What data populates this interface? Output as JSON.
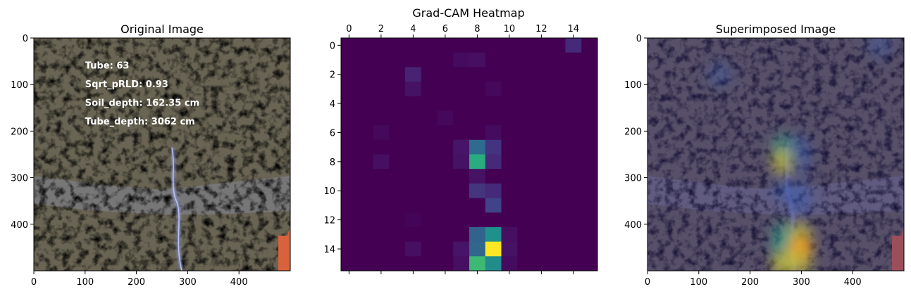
{
  "chart_data": [
    {
      "type": "image",
      "title": "Original Image",
      "xlim": [
        0,
        500
      ],
      "ylim": [
        500,
        0
      ],
      "x_ticks": [
        0,
        100,
        200,
        300,
        400
      ],
      "y_ticks": [
        0,
        100,
        200,
        300,
        400
      ],
      "annotations": [
        "Tube: 63",
        "Sqrt_pRLD: 0.93",
        "Soil_depth: 162.35 cm",
        "Tube_depth: 3062 cm"
      ]
    },
    {
      "type": "heatmap",
      "title": "Grad-CAM Heatmap",
      "x_ticks": [
        0,
        2,
        4,
        6,
        8,
        10,
        12,
        14
      ],
      "y_ticks": [
        0,
        2,
        4,
        6,
        8,
        10,
        12,
        14
      ],
      "colormap": "viridis",
      "rows": 16,
      "cols": 16,
      "hot_cells": [
        {
          "row": 0,
          "col": 14,
          "value": 0.12
        },
        {
          "row": 1,
          "col": 7,
          "value": 0.03
        },
        {
          "row": 1,
          "col": 8,
          "value": 0.04
        },
        {
          "row": 2,
          "col": 4,
          "value": 0.1
        },
        {
          "row": 3,
          "col": 4,
          "value": 0.05
        },
        {
          "row": 3,
          "col": 9,
          "value": 0.02
        },
        {
          "row": 5,
          "col": 6,
          "value": 0.02
        },
        {
          "row": 6,
          "col": 2,
          "value": 0.02
        },
        {
          "row": 6,
          "col": 9,
          "value": 0.03
        },
        {
          "row": 7,
          "col": 7,
          "value": 0.06
        },
        {
          "row": 7,
          "col": 8,
          "value": 0.35
        },
        {
          "row": 7,
          "col": 9,
          "value": 0.15
        },
        {
          "row": 8,
          "col": 2,
          "value": 0.04
        },
        {
          "row": 8,
          "col": 7,
          "value": 0.05
        },
        {
          "row": 8,
          "col": 8,
          "value": 0.62
        },
        {
          "row": 8,
          "col": 9,
          "value": 0.12
        },
        {
          "row": 9,
          "col": 8,
          "value": 0.05
        },
        {
          "row": 10,
          "col": 8,
          "value": 0.16
        },
        {
          "row": 10,
          "col": 9,
          "value": 0.12
        },
        {
          "row": 11,
          "col": 9,
          "value": 0.2
        },
        {
          "row": 12,
          "col": 4,
          "value": 0.01
        },
        {
          "row": 13,
          "col": 8,
          "value": 0.32
        },
        {
          "row": 13,
          "col": 9,
          "value": 0.5
        },
        {
          "row": 13,
          "col": 10,
          "value": 0.04
        },
        {
          "row": 14,
          "col": 4,
          "value": 0.04
        },
        {
          "row": 14,
          "col": 7,
          "value": 0.06
        },
        {
          "row": 14,
          "col": 8,
          "value": 0.33
        },
        {
          "row": 14,
          "col": 9,
          "value": 1.0
        },
        {
          "row": 14,
          "col": 10,
          "value": 0.05
        },
        {
          "row": 15,
          "col": 7,
          "value": 0.04
        },
        {
          "row": 15,
          "col": 8,
          "value": 0.68
        },
        {
          "row": 15,
          "col": 9,
          "value": 0.48
        },
        {
          "row": 15,
          "col": 10,
          "value": 0.03
        }
      ]
    },
    {
      "type": "image",
      "title": "Superimposed Image",
      "xlim": [
        0,
        500
      ],
      "ylim": [
        500,
        0
      ],
      "x_ticks": [
        0,
        100,
        200,
        300,
        400
      ],
      "y_ticks": [
        0,
        100,
        200,
        300,
        400
      ]
    }
  ],
  "colors": {
    "soil_base": "#6e6248",
    "soil_dark": "#3a3020",
    "root": "#8e9ad6",
    "tube_band": "#8c8fa6",
    "corner_orange": "#d9613c",
    "overlay_tint": "#3b2f8c"
  }
}
